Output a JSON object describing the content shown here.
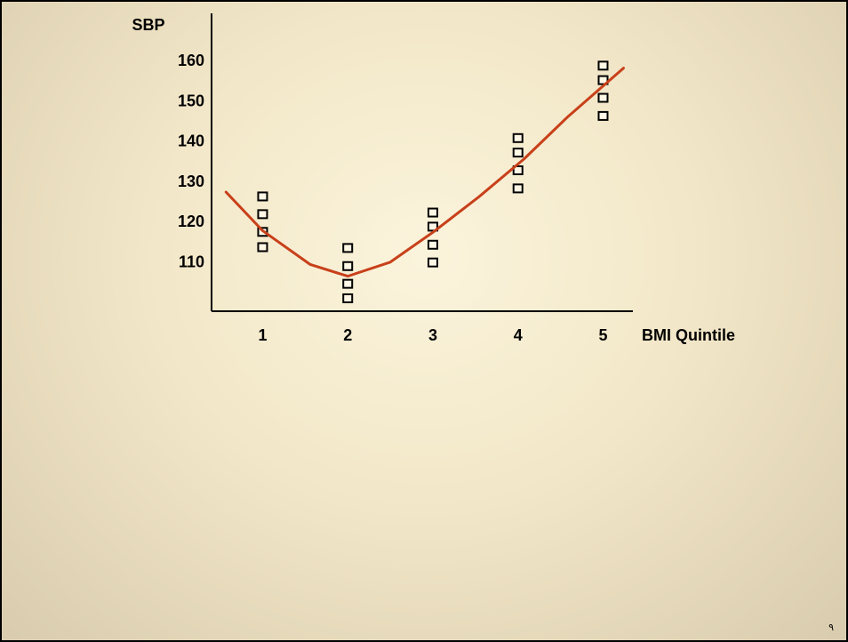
{
  "chart_data": {
    "type": "scatter",
    "ylabel": "SBP",
    "xlabel": "BMI Quintile",
    "xlim": [
      0.4,
      5.35
    ],
    "xticks": [
      1,
      2,
      3,
      4,
      5
    ],
    "ylim": [
      98,
      172
    ],
    "yticks": [
      110,
      120,
      130,
      140,
      150,
      160
    ],
    "grid": false,
    "series": [
      {
        "style": "markers",
        "color": "#000000",
        "x": [
          1,
          1,
          1,
          1,
          2,
          2,
          2,
          2,
          3,
          3,
          3,
          3,
          4,
          4,
          4,
          4,
          5,
          5,
          5,
          5
        ],
        "values": [
          126.4,
          122,
          117.6,
          113.8,
          113.6,
          109.1,
          104.7,
          101.1,
          122.4,
          118.9,
          114.4,
          110,
          140.9,
          137.3,
          132.9,
          128.4,
          158.9,
          155.3,
          150.9,
          146.4
        ]
      },
      {
        "style": "line",
        "color": "#c8401a",
        "x": [
          0.57,
          1,
          1.56,
          2,
          2.5,
          3,
          3.54,
          4.07,
          4.58,
          5.24
        ],
        "values": [
          127.6,
          118,
          109.6,
          106.7,
          110.2,
          117.6,
          126.4,
          135.8,
          146.2,
          158.4
        ]
      }
    ],
    "page_number": "٩"
  }
}
